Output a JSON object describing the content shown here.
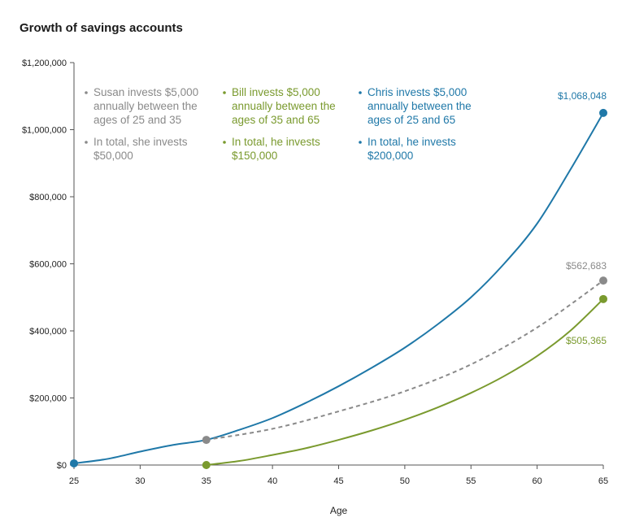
{
  "title": "Growth of savings accounts",
  "chart_data": {
    "type": "line",
    "title": "Growth of savings accounts",
    "xlabel": "Age",
    "ylabel": "",
    "xlim": [
      25,
      65
    ],
    "ylim": [
      0,
      1200000
    ],
    "x_ticks": [
      25,
      30,
      35,
      40,
      45,
      50,
      55,
      60,
      65
    ],
    "y_ticks": [
      {
        "value": 0,
        "label": "$0"
      },
      {
        "value": 200000,
        "label": "$200,000"
      },
      {
        "value": 400000,
        "label": "$400,000"
      },
      {
        "value": 600000,
        "label": "$600,000"
      },
      {
        "value": 800000,
        "label": "$800,000"
      },
      {
        "value": 1000000,
        "label": "$1,000,000"
      },
      {
        "value": 1200000,
        "label": "$1,200,000"
      }
    ],
    "grid": false,
    "series": [
      {
        "key": "chris",
        "color": "#1f78a8",
        "style": "solid",
        "x": [
          25,
          27.5,
          30,
          32.5,
          35,
          37.5,
          40,
          42.5,
          45,
          47.5,
          50,
          52.5,
          55,
          57.5,
          60,
          62.5,
          65
        ],
        "y": [
          5000,
          18000,
          40000,
          60000,
          75000,
          105000,
          140000,
          185000,
          235000,
          290000,
          350000,
          420000,
          500000,
          600000,
          720000,
          880000,
          1050000
        ],
        "end_label": "$1,068,048",
        "notes": [
          "Chris invests $5,000 annually between the ages of 25 and 65",
          "In total, he invests $200,000"
        ]
      },
      {
        "key": "susan",
        "color": "#8a8a8a",
        "style": "dashed",
        "x": [
          35,
          40,
          45,
          50,
          55,
          60,
          65
        ],
        "y": [
          75000,
          108000,
          160000,
          220000,
          300000,
          410000,
          550000
        ],
        "end_label": "$562,683",
        "notes": [
          "Susan invests $5,000 annually between the ages of 25 and 35",
          "In total, she invests $50,000"
        ]
      },
      {
        "key": "bill",
        "color": "#7a9a2e",
        "style": "solid",
        "x": [
          35,
          37.5,
          40,
          42.5,
          45,
          47.5,
          50,
          52.5,
          55,
          57.5,
          60,
          62.5,
          65
        ],
        "y": [
          0,
          12000,
          30000,
          50000,
          75000,
          103000,
          135000,
          172000,
          215000,
          265000,
          325000,
          400000,
          495000
        ],
        "end_label": "$505,365",
        "notes": [
          "Bill invests $5,000 annually between the ages of 35 and 65",
          "In total, he invests $150,000"
        ]
      }
    ],
    "markers": [
      {
        "x": 25,
        "y": 5000,
        "color": "#1f78a8"
      },
      {
        "x": 35,
        "y": 75000,
        "color": "#8a8a8a"
      },
      {
        "x": 35,
        "y": 0,
        "color": "#7a9a2e"
      },
      {
        "x": 65,
        "y": 1050000,
        "color": "#1f78a8"
      },
      {
        "x": 65,
        "y": 550000,
        "color": "#8a8a8a"
      },
      {
        "x": 65,
        "y": 495000,
        "color": "#7a9a2e"
      }
    ]
  }
}
